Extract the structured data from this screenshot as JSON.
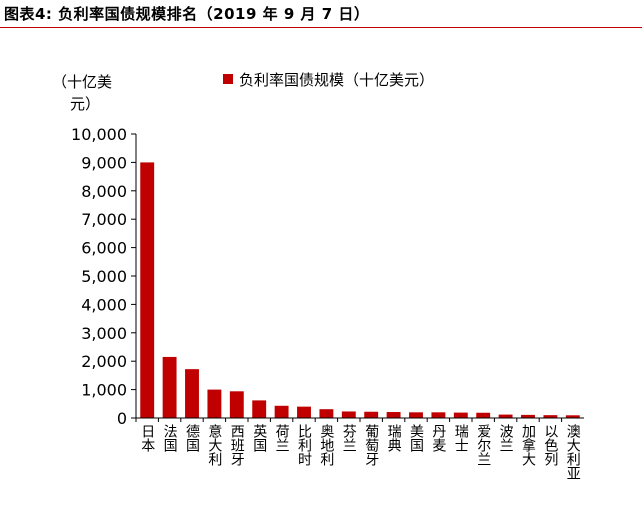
{
  "figure_title": "图表4: 负利率国债规模排名（2019 年 9 月 7 日）",
  "chart_data": {
    "type": "bar",
    "title": "",
    "ylabel": "（十亿美元）",
    "ylabel_lines": [
      "（十亿美",
      "元）"
    ],
    "xlabel": "",
    "ylim": [
      0,
      10000
    ],
    "yticks": [
      0,
      1000,
      2000,
      3000,
      4000,
      5000,
      6000,
      7000,
      8000,
      9000,
      10000
    ],
    "ytick_labels": [
      "0",
      "1,000",
      "2,000",
      "3,000",
      "4,000",
      "5,000",
      "6,000",
      "7,000",
      "8,000",
      "9,000",
      "10,000"
    ],
    "legend": {
      "label": "负利率国债规模（十亿美元）",
      "position": "top",
      "color": "#c00000"
    },
    "series_color": "#c00000",
    "categories": [
      "日本",
      "法国",
      "德国",
      "意大利",
      "西班牙",
      "英国",
      "荷兰",
      "比利时",
      "奥地利",
      "芬兰",
      "葡萄牙",
      "瑞典",
      "美国",
      "丹麦",
      "瑞士",
      "爱尔兰",
      "波兰",
      "加拿大",
      "以色列",
      "澳大利亚"
    ],
    "values": [
      9000,
      2150,
      1720,
      1000,
      940,
      620,
      430,
      400,
      310,
      230,
      220,
      210,
      200,
      200,
      190,
      185,
      120,
      110,
      100,
      95
    ]
  }
}
